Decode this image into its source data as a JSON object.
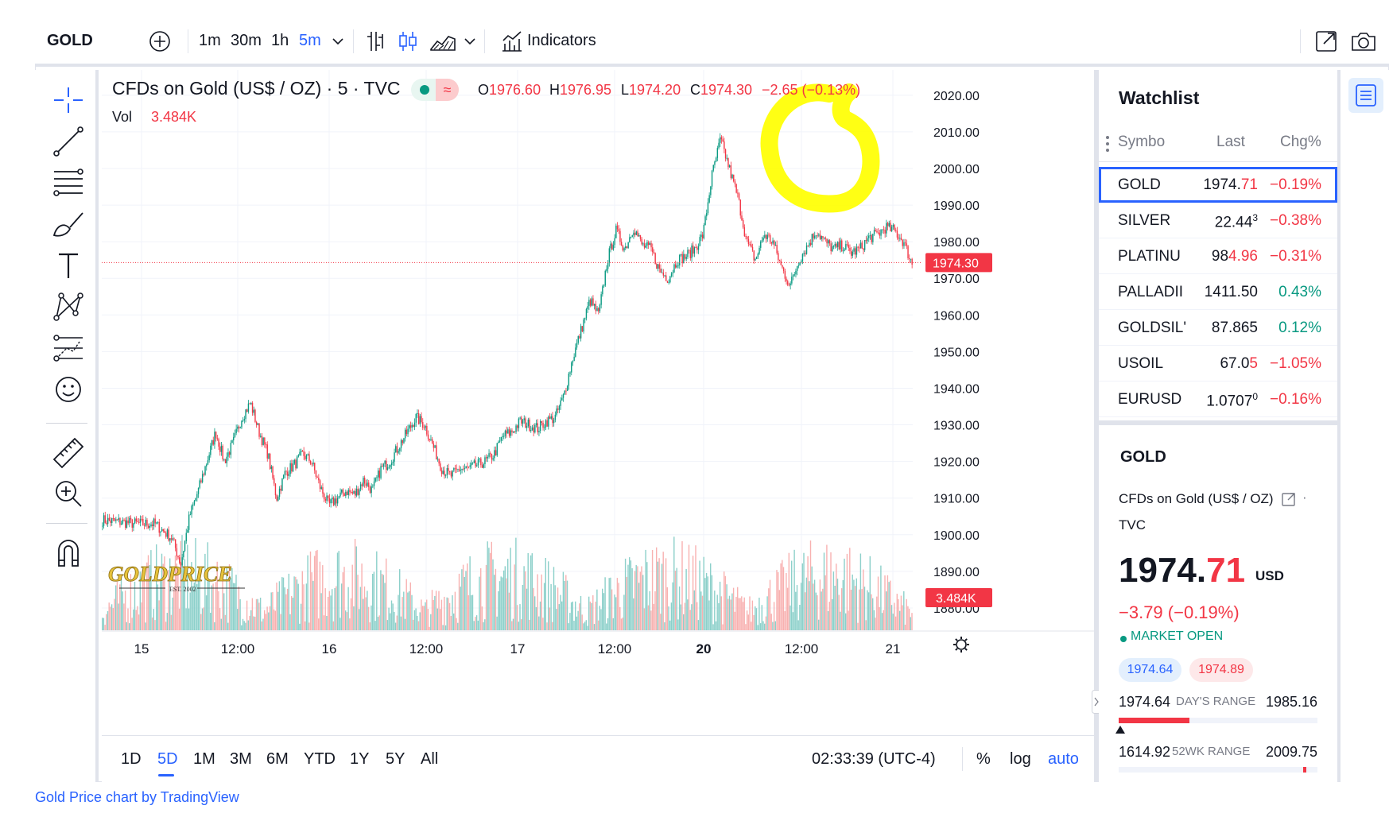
{
  "toolbar": {
    "symbol": "GOLD",
    "intervals": [
      "1m",
      "30m",
      "1h",
      "5m"
    ],
    "active_interval": "5m",
    "indicators_label": "Indicators"
  },
  "legend": {
    "title": "CFDs on Gold (US$ / OZ) · 5 · TVC",
    "ohlc": [
      {
        "k": "O",
        "v": "1976.60"
      },
      {
        "k": "H",
        "v": "1976.95"
      },
      {
        "k": "L",
        "v": "1974.20"
      },
      {
        "k": "C",
        "v": "1974.30"
      }
    ],
    "change": "−2.65 (−0.13%)",
    "vol_label": "Vol",
    "vol_value": "3.484K",
    "wave_symbol": "≈"
  },
  "colors": {
    "up": "#089981",
    "down": "#f23645",
    "accent": "#2962ff",
    "highlight": "#ffff00",
    "volume_up": "#80cbc4",
    "volume_down": "#f7a9a7"
  },
  "watermark": {
    "text": "GOLDPRICE",
    "sub": "EST. 2002"
  },
  "chart_data": {
    "type": "candlestick",
    "y_ticks": [
      "2020.00",
      "2010.00",
      "2000.00",
      "1990.00",
      "1980.00",
      "1970.00",
      "1960.00",
      "1950.00",
      "1940.00",
      "1930.00",
      "1920.00",
      "1910.00",
      "1900.00",
      "1890.00",
      "1880.00"
    ],
    "ylim": [
      1875,
      2023
    ],
    "x_ticks": [
      "15",
      "12:00",
      "16",
      "12:00",
      "17",
      "12:00",
      "20",
      "12:00",
      "21"
    ],
    "last_price_label": "1974.30",
    "last_volume_label": "3.484K",
    "anchors": [
      [
        0,
        1904
      ],
      [
        4,
        1903
      ],
      [
        6,
        1903
      ],
      [
        8,
        1899
      ],
      [
        9,
        1892
      ],
      [
        10,
        1905
      ],
      [
        11,
        1912
      ],
      [
        12,
        1920
      ],
      [
        13,
        1928
      ],
      [
        14,
        1920
      ],
      [
        15,
        1925
      ],
      [
        16,
        1932
      ],
      [
        17,
        1936
      ],
      [
        18,
        1928
      ],
      [
        19,
        1922
      ],
      [
        20,
        1910
      ],
      [
        21,
        1917
      ],
      [
        22,
        1919
      ],
      [
        23,
        1922
      ],
      [
        24,
        1920
      ],
      [
        25,
        1913
      ],
      [
        26,
        1908
      ],
      [
        27,
        1910
      ],
      [
        28,
        1912
      ],
      [
        29,
        1911
      ],
      [
        30,
        1915
      ],
      [
        31,
        1912
      ],
      [
        32,
        1918
      ],
      [
        33,
        1920
      ],
      [
        34,
        1924
      ],
      [
        35,
        1928
      ],
      [
        36,
        1932
      ],
      [
        37,
        1930
      ],
      [
        38,
        1924
      ],
      [
        39,
        1918
      ],
      [
        40,
        1916
      ],
      [
        41,
        1918
      ],
      [
        42,
        1918
      ],
      [
        43,
        1919
      ],
      [
        44,
        1920
      ],
      [
        45,
        1922
      ],
      [
        46,
        1927
      ],
      [
        47,
        1928
      ],
      [
        48,
        1931
      ],
      [
        49,
        1930
      ],
      [
        50,
        1929
      ],
      [
        51,
        1931
      ],
      [
        52,
        1932
      ],
      [
        53,
        1938
      ],
      [
        54,
        1948
      ],
      [
        55,
        1956
      ],
      [
        56,
        1964
      ],
      [
        57,
        1960
      ],
      [
        58,
        1975
      ],
      [
        59,
        1983
      ],
      [
        60,
        1978
      ],
      [
        61,
        1984
      ],
      [
        62,
        1979
      ],
      [
        63,
        1978
      ],
      [
        64,
        1972
      ],
      [
        65,
        1970
      ],
      [
        66,
        1975
      ],
      [
        67,
        1976
      ],
      [
        68,
        1978
      ],
      [
        69,
        1982
      ],
      [
        70,
        1998
      ],
      [
        71,
        2008
      ],
      [
        72,
        2000
      ],
      [
        73,
        1992
      ],
      [
        74,
        1980
      ],
      [
        75,
        1975
      ],
      [
        76,
        1982
      ],
      [
        77,
        1980
      ],
      [
        78,
        1973
      ],
      [
        79,
        1968
      ],
      [
        80,
        1975
      ],
      [
        81,
        1979
      ],
      [
        82,
        1983
      ],
      [
        83,
        1980
      ],
      [
        84,
        1978
      ],
      [
        85,
        1979
      ],
      [
        86,
        1977
      ],
      [
        87,
        1978
      ],
      [
        88,
        1981
      ],
      [
        89,
        1982
      ],
      [
        90,
        1984
      ],
      [
        91,
        1983
      ],
      [
        92,
        1980
      ],
      [
        93,
        1974
      ]
    ]
  },
  "date_axis": {
    "time_label": "02:33:39 (UTC-4)",
    "percent": "%",
    "log": "log",
    "auto": "auto"
  },
  "ranges": [
    "1D",
    "5D",
    "1M",
    "3M",
    "6M",
    "YTD",
    "1Y",
    "5Y",
    "All"
  ],
  "active_range": "5D",
  "watchlist": {
    "title": "Watchlist",
    "headers": {
      "symbol": "Symbo",
      "last": "Last",
      "chg": "Chg%"
    },
    "rows": [
      {
        "symbol": "GOLD",
        "last_a": "1974.",
        "last_b": "71",
        "chg": "−0.19%",
        "dir": "neg"
      },
      {
        "symbol": "SILVER",
        "last_a": "22.44",
        "last_b": "3",
        "chg": "−0.38%",
        "dir": "neg"
      },
      {
        "symbol": "PLATINU",
        "last_a": "98",
        "last_b": "4.96",
        "chg": "−0.31%",
        "dir": "neg"
      },
      {
        "symbol": "PALLADII",
        "last_a": "1411.50",
        "last_b": "",
        "chg": "0.43%",
        "dir": "pos"
      },
      {
        "symbol": "GOLDSIL'",
        "last_a": "87.865",
        "last_b": "",
        "chg": "0.12%",
        "dir": "pos"
      },
      {
        "symbol": "USOIL",
        "last_a": "67.0",
        "last_b": "5",
        "chg": "−1.05%",
        "dir": "neg"
      },
      {
        "symbol": "EURUSD",
        "last_a": "1.0707",
        "last_b": "0",
        "chg": "−0.16%",
        "dir": "neg"
      }
    ]
  },
  "details": {
    "symbol": "GOLD",
    "desc": "CFDs on Gold (US$ / OZ)",
    "exchange": "TVC",
    "price_a": "1974.",
    "price_b": "71",
    "currency": "USD",
    "change": "−3.79 (−0.19%)",
    "status": "MARKET OPEN",
    "bid": "1974.64",
    "ask": "1974.89",
    "day_low": "1974.64",
    "day_label": "DAY'S RANGE",
    "day_high": "1985.16",
    "wk_low": "1614.92",
    "wk_label": "52WK RANGE",
    "wk_high": "2009.75"
  },
  "footer": "Gold Price chart by TradingView"
}
